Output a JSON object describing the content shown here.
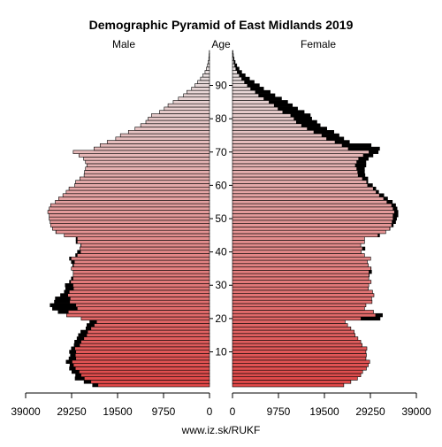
{
  "chart_data": {
    "type": "bar",
    "subtype": "population-pyramid",
    "title": "Demographic Pyramid of East Midlands 2019",
    "left_label": "Male",
    "center_label": "Age",
    "right_label": "Female",
    "source": "www.iz.sk/RUKF",
    "x_ticks": [
      "39000",
      "29250",
      "19500",
      "9750",
      "0",
      "0",
      "9750",
      "19500",
      "29250",
      "39000"
    ],
    "x_max": 39000,
    "age_ticks": [
      "10",
      "20",
      "30",
      "40",
      "50",
      "60",
      "70",
      "80",
      "90"
    ],
    "age_tick_values": [
      10,
      20,
      30,
      40,
      50,
      60,
      70,
      80,
      90
    ],
    "age_range": [
      0,
      100
    ],
    "colors": {
      "young": "#e04848",
      "old": "#e8e8e8",
      "outline": "#000000",
      "excess": "#000000"
    },
    "male": [
      24800,
      26600,
      28500,
      28400,
      29200,
      29700,
      29600,
      30400,
      29800,
      29500,
      29700,
      29300,
      28700,
      28600,
      28100,
      27800,
      27300,
      26200,
      26000,
      25400,
      27200,
      30300,
      32100,
      33300,
      33800,
      32900,
      32700,
      31600,
      30800,
      30500,
      30600,
      29700,
      29300,
      28900,
      28900,
      29300,
      29000,
      29300,
      29700,
      28400,
      28000,
      27500,
      27300,
      28300,
      28300,
      30800,
      32600,
      33300,
      33700,
      33800,
      34000,
      34000,
      34300,
      34000,
      33700,
      32700,
      32000,
      31100,
      30400,
      29800,
      28600,
      28400,
      27500,
      26600,
      26500,
      26300,
      26000,
      26300,
      26700,
      27700,
      28900,
      24500,
      23200,
      21700,
      19900,
      18900,
      17200,
      15800,
      14600,
      13500,
      13000,
      12300,
      10600,
      9600,
      8800,
      7700,
      6600,
      5500,
      4800,
      3800,
      3100,
      2500,
      1900,
      1400,
      950,
      650,
      420,
      260,
      150,
      80,
      40
    ],
    "female": [
      23600,
      25100,
      26500,
      27200,
      27600,
      28400,
      28800,
      29100,
      28300,
      28400,
      28300,
      28500,
      27500,
      27200,
      26600,
      26000,
      25800,
      25100,
      24400,
      23900,
      31300,
      31800,
      29900,
      28000,
      28300,
      29600,
      29500,
      30000,
      29700,
      28800,
      28900,
      29400,
      28900,
      29000,
      29500,
      29400,
      28800,
      28600,
      29300,
      28000,
      27300,
      28100,
      27200,
      28000,
      28000,
      31200,
      32500,
      33400,
      34100,
      34600,
      34800,
      35100,
      35100,
      34900,
      34600,
      33900,
      32900,
      32100,
      31000,
      30400,
      29700,
      28700,
      28700,
      28100,
      28000,
      28000,
      28300,
      28300,
      28800,
      29800,
      30900,
      31200,
      29400,
      24800,
      23600,
      22600,
      21500,
      20000,
      18600,
      17900,
      16800,
      16500,
      15200,
      13800,
      12700,
      11700,
      10400,
      9000,
      8000,
      6600,
      5700,
      4600,
      3600,
      2700,
      1950,
      1400,
      900,
      560,
      330,
      180,
      95
    ]
  }
}
